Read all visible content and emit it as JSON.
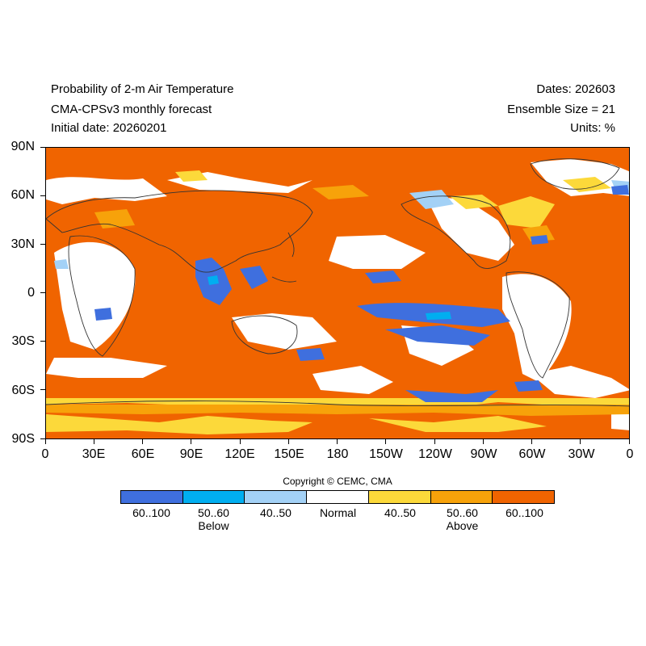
{
  "header": {
    "title_line1": "Probability of 2-m Air Temperature",
    "title_line2": "CMA-CPSv3 monthly forecast",
    "title_line3": "Initial date: 20260201",
    "dates": "Dates: 202603",
    "ensemble": "Ensemble Size = 21",
    "units": "Units: %"
  },
  "map": {
    "y_tick_labels": [
      "90N",
      "60N",
      "30N",
      "0",
      "30S",
      "60S",
      "90S"
    ],
    "x_tick_labels": [
      "0",
      "30E",
      "60E",
      "90E",
      "120E",
      "150E",
      "180",
      "150W",
      "120W",
      "90W",
      "60W",
      "30W",
      "0"
    ],
    "background_category": "Above 60..100"
  },
  "copyright": "Copyright © CEMC, CMA",
  "legend": {
    "categories": [
      {
        "label": "60..100",
        "color": "#3f6fde"
      },
      {
        "label": "50..60",
        "color": "#00aef0"
      },
      {
        "label": "40..50",
        "color": "#a3d1f6"
      },
      {
        "label": "Normal",
        "color": "#ffffff"
      },
      {
        "label": "40..50",
        "color": "#fcd93a"
      },
      {
        "label": "50..60",
        "color": "#f7a20a"
      },
      {
        "label": "60..100",
        "color": "#f06400"
      }
    ],
    "below_label": "Below",
    "above_label": "Above"
  }
}
